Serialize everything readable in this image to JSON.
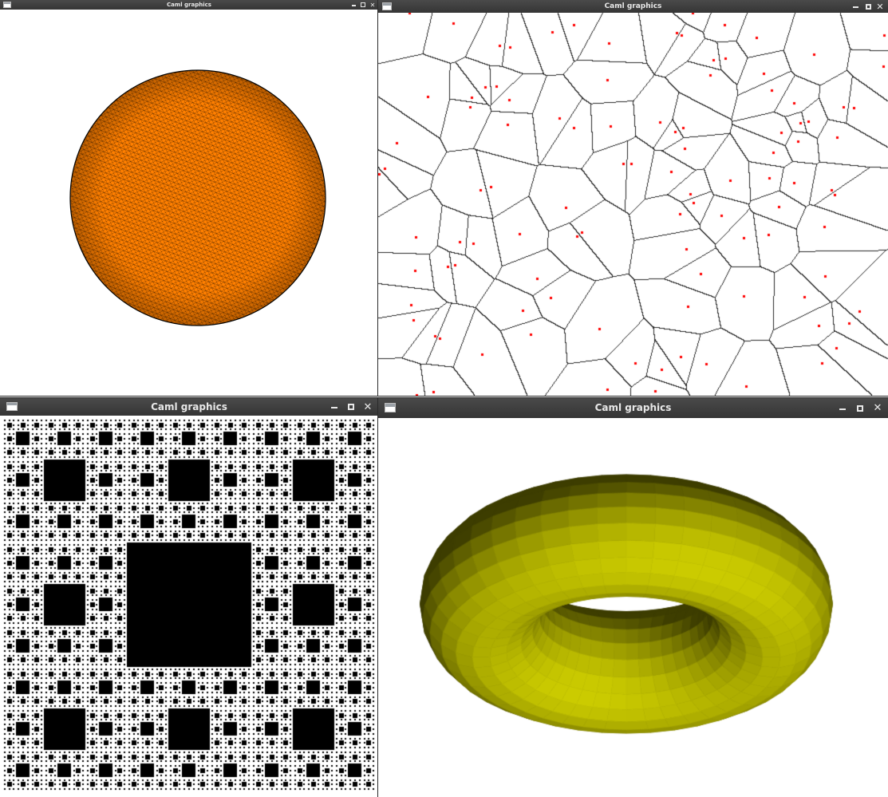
{
  "windows": [
    {
      "id": "sphere",
      "title": "Caml graphics",
      "fill": "#ff7f00",
      "stroke": "#000000"
    },
    {
      "id": "voronoi",
      "title": "Caml graphics",
      "site_color": "#ff0000",
      "edge_color": "#000000"
    },
    {
      "id": "sierpinski",
      "title": "Caml graphics",
      "fill": "#000000"
    },
    {
      "id": "torus",
      "title": "Caml graphics",
      "fill": "#cccc00"
    }
  ],
  "controls": {
    "minimize_icon": "minimize-icon",
    "maximize_icon": "maximize-icon",
    "close_icon": "close-icon",
    "close_glyph": "✕"
  }
}
